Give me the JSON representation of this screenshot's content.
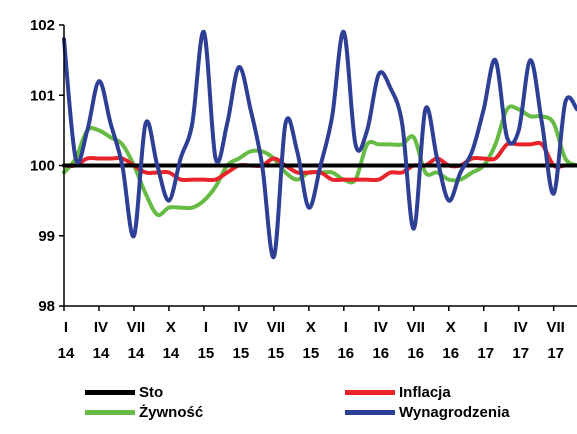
{
  "chart_data": {
    "type": "line",
    "title": "",
    "xlabel": "",
    "ylabel": "",
    "ylim": [
      98,
      102
    ],
    "yticks": [
      "98",
      "99",
      "100",
      "101",
      "102"
    ],
    "x_tick_labels": [
      {
        "month": "I",
        "year": "14"
      },
      {
        "month": "IV",
        "year": "14"
      },
      {
        "month": "VII",
        "year": "14"
      },
      {
        "month": "X",
        "year": "14"
      },
      {
        "month": "I",
        "year": "15"
      },
      {
        "month": "IV",
        "year": "15"
      },
      {
        "month": "VII",
        "year": "15"
      },
      {
        "month": "X",
        "year": "15"
      },
      {
        "month": "I",
        "year": "16"
      },
      {
        "month": "IV",
        "year": "16"
      },
      {
        "month": "VII",
        "year": "16"
      },
      {
        "month": "X",
        "year": "16"
      },
      {
        "month": "I",
        "year": "17"
      },
      {
        "month": "IV",
        "year": "17"
      },
      {
        "month": "VII",
        "year": "17"
      }
    ],
    "x": [
      "I 14",
      "II 14",
      "III 14",
      "IV 14",
      "V 14",
      "VI 14",
      "VII 14",
      "VIII 14",
      "IX 14",
      "X 14",
      "XI 14",
      "XII 14",
      "I 15",
      "II 15",
      "III 15",
      "IV 15",
      "V 15",
      "VI 15",
      "VII 15",
      "VIII 15",
      "IX 15",
      "X 15",
      "XI 15",
      "XII 15",
      "I 16",
      "II 16",
      "III 16",
      "IV 16",
      "V 16",
      "VI 16",
      "VII 16",
      "VIII 16",
      "IX 16",
      "X 16",
      "XI 16",
      "XII 16",
      "I 17",
      "II 17",
      "III 17",
      "IV 17",
      "V 17",
      "VI 17",
      "VII 17",
      "VIII 17",
      "IX 17"
    ],
    "series": [
      {
        "name": "Sto",
        "color": "#000000",
        "values": [
          100,
          100,
          100,
          100,
          100,
          100,
          100,
          100,
          100,
          100,
          100,
          100,
          100,
          100,
          100,
          100,
          100,
          100,
          100,
          100,
          100,
          100,
          100,
          100,
          100,
          100,
          100,
          100,
          100,
          100,
          100,
          100,
          100,
          100,
          100,
          100,
          100,
          100,
          100,
          100,
          100,
          100,
          100,
          100,
          100
        ]
      },
      {
        "name": "Inflacja",
        "color": "#e8232a",
        "values": [
          100.0,
          100.0,
          100.1,
          100.1,
          100.1,
          100.1,
          100.0,
          99.9,
          99.9,
          99.9,
          99.8,
          99.8,
          99.8,
          99.8,
          99.9,
          100.0,
          100.0,
          100.0,
          100.1,
          100.0,
          99.9,
          99.9,
          99.9,
          99.8,
          99.8,
          99.8,
          99.8,
          99.8,
          99.9,
          99.9,
          100.0,
          100.0,
          100.1,
          100.0,
          100.0,
          100.1,
          100.1,
          100.1,
          100.3,
          100.3,
          100.3,
          100.3,
          100.0,
          100.0,
          100.0
        ]
      },
      {
        "name": "Żywność",
        "color": "#66bb44",
        "values": [
          99.9,
          100.1,
          100.5,
          100.5,
          100.4,
          100.3,
          100.0,
          99.6,
          99.3,
          99.4,
          99.4,
          99.4,
          99.5,
          99.7,
          100.0,
          100.1,
          100.2,
          100.2,
          100.1,
          99.9,
          99.8,
          99.9,
          99.9,
          99.9,
          99.8,
          99.8,
          100.3,
          100.3,
          100.3,
          100.3,
          100.4,
          99.9,
          99.9,
          99.8,
          99.8,
          99.9,
          100.0,
          100.3,
          100.8,
          100.8,
          100.7,
          100.7,
          100.6,
          100.1,
          100.0
        ]
      },
      {
        "name": "Wynagrodzenia",
        "color": "#2e3f96",
        "values": [
          101.8,
          100.1,
          100.5,
          101.2,
          100.6,
          100.0,
          99.0,
          100.6,
          100.0,
          99.5,
          100.1,
          100.6,
          101.9,
          100.1,
          100.6,
          101.4,
          100.8,
          100.0,
          98.7,
          100.6,
          100.2,
          99.4,
          100.0,
          100.7,
          101.9,
          100.3,
          100.5,
          101.3,
          101.1,
          100.6,
          99.1,
          100.8,
          100.1,
          99.5,
          99.9,
          100.2,
          100.8,
          101.5,
          100.4,
          100.5,
          101.5,
          100.6,
          99.6,
          100.9,
          100.8
        ]
      }
    ],
    "legend_position": "bottom",
    "legend_order": [
      "Sto",
      "Inflacja",
      "Żywność",
      "Wynagrodzenia"
    ],
    "grid": false
  }
}
